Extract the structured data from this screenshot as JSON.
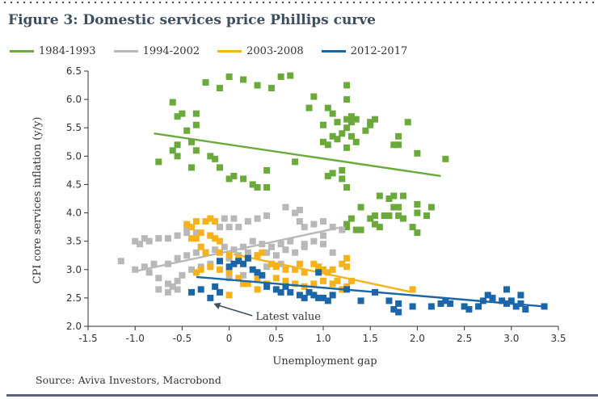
{
  "figure": {
    "title": "Figure 3: Domestic services price Phillips curve",
    "source": "Source: Aviva Investors, Macrobond"
  },
  "chart_data": {
    "type": "scatter",
    "xlabel": "Unemployment gap",
    "ylabel": "CPI core services inflation (y/y)",
    "xlim": [
      -1.5,
      3.5
    ],
    "ylim": [
      2.0,
      6.5
    ],
    "xticks": [
      "-1.5",
      "-1.0",
      "-0.5",
      "0",
      "0.5",
      "1.0",
      "1.5",
      "2.0",
      "2.5",
      "3.0",
      "3.5"
    ],
    "yticks": [
      "2.0",
      "2.5",
      "3.0",
      "3.5",
      "4.0",
      "4.5",
      "5.0",
      "5.5",
      "6.0",
      "6.5"
    ],
    "grid": false,
    "legend_position": "top",
    "annotation": {
      "text": "Latest value",
      "x": -0.2,
      "y": 2.5
    },
    "series": [
      {
        "name": "1984-1993",
        "color": "#6aaa3a",
        "trend": [
          [
            -0.8,
            5.4
          ],
          [
            2.25,
            4.65
          ]
        ],
        "points": [
          [
            0.0,
            6.4
          ],
          [
            0.15,
            6.35
          ],
          [
            0.3,
            6.25
          ],
          [
            -0.25,
            6.3
          ],
          [
            -0.1,
            6.2
          ],
          [
            0.55,
            6.4
          ],
          [
            0.65,
            6.42
          ],
          [
            0.45,
            6.2
          ],
          [
            -0.6,
            5.95
          ],
          [
            -0.5,
            5.75
          ],
          [
            -0.45,
            5.45
          ],
          [
            -0.55,
            5.2
          ],
          [
            -0.6,
            5.1
          ],
          [
            -0.4,
            5.25
          ],
          [
            -0.35,
            5.1
          ],
          [
            -0.4,
            4.8
          ],
          [
            -0.55,
            5.0
          ],
          [
            -0.2,
            5.0
          ],
          [
            -0.15,
            4.95
          ],
          [
            -0.1,
            4.8
          ],
          [
            0.0,
            4.6
          ],
          [
            0.05,
            4.65
          ],
          [
            0.15,
            4.6
          ],
          [
            0.25,
            4.5
          ],
          [
            0.3,
            4.45
          ],
          [
            0.4,
            4.75
          ],
          [
            0.4,
            4.45
          ],
          [
            -0.75,
            4.9
          ],
          [
            -0.55,
            5.7
          ],
          [
            -0.35,
            5.55
          ],
          [
            -0.35,
            5.75
          ],
          [
            0.7,
            4.9
          ],
          [
            0.9,
            6.05
          ],
          [
            0.85,
            5.85
          ],
          [
            1.0,
            5.55
          ],
          [
            1.05,
            5.85
          ],
          [
            1.1,
            5.75
          ],
          [
            1.15,
            5.6
          ],
          [
            1.25,
            5.65
          ],
          [
            1.3,
            5.6
          ],
          [
            1.3,
            5.7
          ],
          [
            1.35,
            5.65
          ],
          [
            1.25,
            6.25
          ],
          [
            1.25,
            6.0
          ],
          [
            1.0,
            5.25
          ],
          [
            1.05,
            5.2
          ],
          [
            1.1,
            5.35
          ],
          [
            1.15,
            5.3
          ],
          [
            1.2,
            5.4
          ],
          [
            1.25,
            5.5
          ],
          [
            1.3,
            5.35
          ],
          [
            1.25,
            5.15
          ],
          [
            1.35,
            5.25
          ],
          [
            1.5,
            5.6
          ],
          [
            1.55,
            5.65
          ],
          [
            1.45,
            5.45
          ],
          [
            1.5,
            5.55
          ],
          [
            1.05,
            4.65
          ],
          [
            1.2,
            4.6
          ],
          [
            1.2,
            4.75
          ],
          [
            1.25,
            4.45
          ],
          [
            1.1,
            4.7
          ],
          [
            1.75,
            5.2
          ],
          [
            1.8,
            5.2
          ],
          [
            1.8,
            5.35
          ],
          [
            1.9,
            5.6
          ],
          [
            2.0,
            5.05
          ],
          [
            2.3,
            4.95
          ],
          [
            1.6,
            4.3
          ],
          [
            1.7,
            4.25
          ],
          [
            1.75,
            4.3
          ],
          [
            1.75,
            4.1
          ],
          [
            1.55,
            3.95
          ],
          [
            1.5,
            3.9
          ],
          [
            1.4,
            4.1
          ],
          [
            1.3,
            3.9
          ],
          [
            1.6,
            3.75
          ],
          [
            1.65,
            3.95
          ],
          [
            1.7,
            3.95
          ],
          [
            1.8,
            4.1
          ],
          [
            1.8,
            3.95
          ],
          [
            1.85,
            3.9
          ],
          [
            2.0,
            4.15
          ],
          [
            2.0,
            4.0
          ],
          [
            2.1,
            3.95
          ],
          [
            2.15,
            4.1
          ],
          [
            2.0,
            3.65
          ],
          [
            1.95,
            3.75
          ],
          [
            1.25,
            3.75
          ],
          [
            1.25,
            3.8
          ],
          [
            1.35,
            3.7
          ],
          [
            1.4,
            3.7
          ],
          [
            1.55,
            3.8
          ],
          [
            1.85,
            4.3
          ]
        ]
      },
      {
        "name": "1994-2002",
        "color": "#b8b8b8",
        "trend": [
          [
            -1.0,
            2.97
          ],
          [
            1.2,
            3.75
          ]
        ],
        "points": [
          [
            -1.15,
            3.15
          ],
          [
            -1.0,
            3.5
          ],
          [
            -0.95,
            3.45
          ],
          [
            -0.9,
            3.55
          ],
          [
            -0.85,
            3.5
          ],
          [
            -0.75,
            3.55
          ],
          [
            -0.65,
            3.55
          ],
          [
            -0.55,
            3.6
          ],
          [
            -0.45,
            3.75
          ],
          [
            -0.45,
            3.65
          ],
          [
            -0.35,
            3.65
          ],
          [
            -0.2,
            3.6
          ],
          [
            -0.1,
            3.75
          ],
          [
            -0.05,
            3.9
          ],
          [
            0.0,
            3.75
          ],
          [
            0.05,
            3.9
          ],
          [
            0.1,
            3.75
          ],
          [
            0.2,
            3.85
          ],
          [
            0.3,
            3.9
          ],
          [
            0.4,
            3.95
          ],
          [
            0.6,
            4.1
          ],
          [
            0.7,
            4.0
          ],
          [
            0.75,
            4.05
          ],
          [
            0.75,
            3.85
          ],
          [
            0.8,
            3.75
          ],
          [
            0.9,
            3.8
          ],
          [
            1.0,
            3.85
          ],
          [
            1.1,
            3.75
          ],
          [
            1.2,
            3.7
          ],
          [
            1.0,
            3.6
          ],
          [
            0.9,
            3.5
          ],
          [
            0.8,
            3.45
          ],
          [
            0.65,
            3.5
          ],
          [
            0.55,
            3.45
          ],
          [
            0.45,
            3.4
          ],
          [
            0.35,
            3.45
          ],
          [
            0.25,
            3.5
          ],
          [
            0.15,
            3.4
          ],
          [
            0.05,
            3.35
          ],
          [
            -0.05,
            3.4
          ],
          [
            -0.15,
            3.35
          ],
          [
            -0.25,
            3.3
          ],
          [
            -0.35,
            3.3
          ],
          [
            -0.45,
            3.25
          ],
          [
            -0.55,
            3.2
          ],
          [
            -0.65,
            3.1
          ],
          [
            -0.8,
            3.1
          ],
          [
            -0.9,
            3.05
          ],
          [
            -1.0,
            3.0
          ],
          [
            -0.85,
            2.95
          ],
          [
            -0.75,
            2.85
          ],
          [
            -0.65,
            2.75
          ],
          [
            -0.6,
            2.7
          ],
          [
            -0.55,
            2.8
          ],
          [
            -0.5,
            2.9
          ],
          [
            -0.4,
            3.0
          ],
          [
            -0.3,
            3.05
          ],
          [
            -0.2,
            3.1
          ],
          [
            -0.1,
            3.15
          ],
          [
            0.0,
            3.2
          ],
          [
            0.1,
            3.25
          ],
          [
            0.2,
            3.3
          ],
          [
            0.3,
            3.25
          ],
          [
            0.4,
            3.3
          ],
          [
            0.5,
            3.25
          ],
          [
            0.6,
            3.35
          ],
          [
            0.7,
            3.3
          ],
          [
            0.8,
            3.4
          ],
          [
            1.0,
            3.45
          ],
          [
            1.1,
            3.3
          ],
          [
            -0.75,
            2.65
          ],
          [
            -0.65,
            2.6
          ],
          [
            -0.55,
            2.65
          ],
          [
            0.0,
            2.85
          ],
          [
            0.15,
            2.9
          ],
          [
            0.3,
            2.95
          ],
          [
            0.4,
            3.05
          ],
          [
            0.55,
            3.1
          ]
        ]
      },
      {
        "name": "2003-2008",
        "color": "#f5b21c",
        "trend": [
          [
            0.05,
            3.27
          ],
          [
            1.95,
            2.6
          ]
        ],
        "points": [
          [
            -0.45,
            3.8
          ],
          [
            -0.4,
            3.75
          ],
          [
            -0.35,
            3.85
          ],
          [
            -0.25,
            3.85
          ],
          [
            -0.2,
            3.9
          ],
          [
            -0.15,
            3.85
          ],
          [
            -0.3,
            3.65
          ],
          [
            -0.4,
            3.55
          ],
          [
            -0.35,
            3.55
          ],
          [
            -0.2,
            3.6
          ],
          [
            -0.15,
            3.55
          ],
          [
            -0.1,
            3.5
          ],
          [
            -0.3,
            3.4
          ],
          [
            -0.25,
            3.3
          ],
          [
            -0.1,
            3.3
          ],
          [
            0.0,
            3.25
          ],
          [
            0.1,
            3.2
          ],
          [
            0.2,
            3.2
          ],
          [
            0.3,
            3.25
          ],
          [
            0.35,
            3.3
          ],
          [
            0.45,
            3.1
          ],
          [
            0.5,
            3.05
          ],
          [
            0.6,
            3.0
          ],
          [
            0.7,
            3.0
          ],
          [
            0.75,
            3.1
          ],
          [
            0.8,
            2.95
          ],
          [
            0.9,
            3.1
          ],
          [
            0.95,
            3.05
          ],
          [
            1.0,
            3.0
          ],
          [
            1.05,
            2.95
          ],
          [
            1.1,
            3.0
          ],
          [
            1.2,
            3.1
          ],
          [
            1.25,
            3.2
          ],
          [
            1.25,
            3.05
          ],
          [
            1.15,
            2.8
          ],
          [
            1.1,
            2.75
          ],
          [
            1.0,
            2.8
          ],
          [
            0.9,
            2.75
          ],
          [
            0.8,
            2.7
          ],
          [
            0.7,
            2.75
          ],
          [
            0.6,
            2.8
          ],
          [
            0.5,
            2.85
          ],
          [
            0.4,
            2.75
          ],
          [
            0.3,
            2.85
          ],
          [
            0.2,
            2.75
          ],
          [
            0.1,
            2.85
          ],
          [
            0.0,
            2.95
          ],
          [
            -0.1,
            3.0
          ],
          [
            -0.2,
            3.05
          ],
          [
            -0.3,
            3.0
          ],
          [
            -0.35,
            2.95
          ],
          [
            1.25,
            2.7
          ],
          [
            1.3,
            2.8
          ],
          [
            1.2,
            2.65
          ],
          [
            1.95,
            2.65
          ],
          [
            0.0,
            2.55
          ],
          [
            0.3,
            2.65
          ],
          [
            0.15,
            2.75
          ]
        ]
      },
      {
        "name": "2012-2017",
        "color": "#1a66a8",
        "trend": [
          [
            -0.35,
            2.87
          ],
          [
            3.35,
            2.35
          ]
        ],
        "points": [
          [
            -0.4,
            2.6
          ],
          [
            -0.3,
            2.65
          ],
          [
            -0.2,
            2.5
          ],
          [
            -0.15,
            2.7
          ],
          [
            -0.1,
            2.6
          ],
          [
            -0.1,
            3.15
          ],
          [
            0.0,
            3.05
          ],
          [
            0.05,
            3.1
          ],
          [
            0.1,
            3.15
          ],
          [
            0.15,
            3.1
          ],
          [
            0.2,
            3.2
          ],
          [
            0.25,
            3.0
          ],
          [
            0.3,
            2.95
          ],
          [
            0.35,
            2.9
          ],
          [
            0.4,
            2.7
          ],
          [
            0.5,
            2.65
          ],
          [
            0.55,
            2.6
          ],
          [
            0.65,
            2.6
          ],
          [
            0.75,
            2.55
          ],
          [
            0.8,
            2.5
          ],
          [
            0.85,
            2.6
          ],
          [
            0.9,
            2.55
          ],
          [
            0.95,
            2.5
          ],
          [
            1.0,
            2.5
          ],
          [
            1.05,
            2.45
          ],
          [
            1.1,
            2.55
          ],
          [
            1.25,
            2.65
          ],
          [
            1.4,
            2.45
          ],
          [
            1.55,
            2.6
          ],
          [
            1.7,
            2.45
          ],
          [
            1.75,
            2.3
          ],
          [
            1.8,
            2.4
          ],
          [
            1.8,
            2.25
          ],
          [
            1.95,
            2.35
          ],
          [
            2.15,
            2.35
          ],
          [
            2.25,
            2.4
          ],
          [
            2.3,
            2.45
          ],
          [
            2.35,
            2.4
          ],
          [
            2.5,
            2.35
          ],
          [
            2.55,
            2.3
          ],
          [
            2.65,
            2.35
          ],
          [
            2.7,
            2.45
          ],
          [
            2.75,
            2.55
          ],
          [
            2.8,
            2.5
          ],
          [
            2.9,
            2.45
          ],
          [
            2.95,
            2.4
          ],
          [
            3.0,
            2.45
          ],
          [
            3.05,
            2.35
          ],
          [
            3.1,
            2.4
          ],
          [
            3.15,
            2.3
          ],
          [
            2.95,
            2.65
          ],
          [
            3.1,
            2.55
          ],
          [
            3.35,
            2.35
          ],
          [
            0.95,
            2.95
          ],
          [
            0.6,
            2.7
          ]
        ]
      }
    ]
  }
}
